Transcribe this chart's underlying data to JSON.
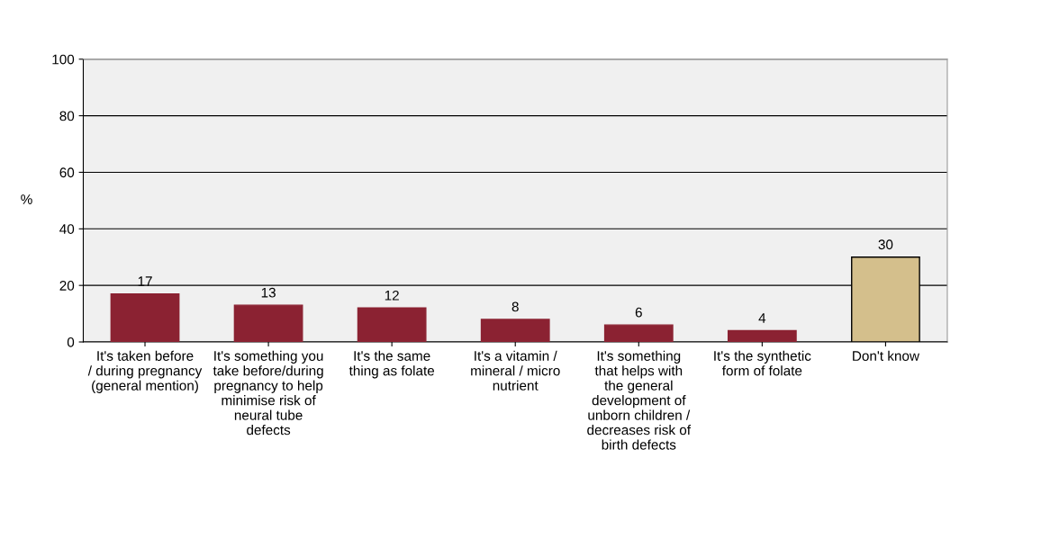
{
  "chart_data": {
    "type": "bar",
    "ylabel": "%",
    "categories": [
      "It's taken before / during pregnancy (general mention)",
      "It's something you take before/during pregnancy to help minimise risk of neural tube defects",
      "It's the same thing as folate",
      "It's a vitamin / mineral / micro nutrient",
      "It's something that helps with the general development of unborn children / decreases risk of birth defects",
      "It's the synthetic form of folate",
      "Don't know"
    ],
    "values": [
      17,
      13,
      12,
      8,
      6,
      4,
      30
    ],
    "colors": [
      "#8b2232",
      "#8b2232",
      "#8b2232",
      "#8b2232",
      "#8b2232",
      "#8b2232",
      "#d4bf8c"
    ],
    "ylim": [
      0,
      100
    ],
    "yticks": [
      0,
      20,
      40,
      60,
      80,
      100
    ],
    "grid": "y",
    "data_labels": true
  }
}
